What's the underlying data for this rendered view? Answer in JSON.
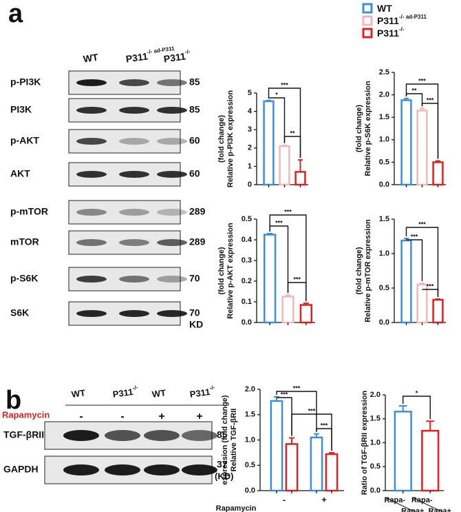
{
  "panel_a": "a",
  "panel_b": "b",
  "legend": [
    {
      "name": "WT",
      "color": "#3b8fdc"
    },
    {
      "name": "P311",
      "sup": "-/- ad-P311",
      "color": "#f2b8b8"
    },
    {
      "name": "P311",
      "sup": "-/-",
      "color": "#e02020"
    }
  ],
  "blot_a": {
    "lanes": [
      {
        "name": "WT"
      },
      {
        "name": "P311",
        "sup": "-/- ad-P311"
      },
      {
        "name": "P311",
        "sup": "-/-"
      }
    ],
    "rows": [
      {
        "label": "p-PI3K",
        "kda": "85"
      },
      {
        "label": "PI3K",
        "kda": "85"
      },
      {
        "label": "p-AKT",
        "kda": "60"
      },
      {
        "label": "AKT",
        "kda": "60"
      },
      {
        "label": "p-mTOR",
        "kda": "289"
      },
      {
        "label": "mTOR",
        "kda": "289"
      },
      {
        "label": "p-S6K",
        "kda": "70"
      },
      {
        "label": "S6K",
        "kda": "70"
      }
    ],
    "unit": "KD"
  },
  "blot_b": {
    "lanes": [
      {
        "name": "WT"
      },
      {
        "name": "P311",
        "sup": "-/-"
      },
      {
        "name": "WT"
      },
      {
        "name": "P311",
        "sup": "-/-"
      }
    ],
    "treatment": "Rapamycin",
    "treatment_marks": [
      "-",
      "-",
      "+",
      "+"
    ],
    "rows": [
      {
        "label": "TGF-βRII",
        "kda": "85"
      },
      {
        "label": "GAPDH",
        "kda": "37"
      }
    ],
    "unit": "(KD)"
  },
  "chart_data": [
    {
      "type": "bar",
      "ylabel": [
        "Relative p-PI3K expression",
        "(fold change)"
      ],
      "categories": [
        null,
        null,
        null
      ],
      "values": [
        4.55,
        2.1,
        0.7
      ],
      "errors": [
        0.05,
        0.05,
        0.65
      ],
      "colors": [
        "#3b8fdc",
        "#f2b8b8",
        "#e02020"
      ],
      "ylim": [
        0,
        5
      ],
      "yticks": [
        0,
        1,
        2,
        3,
        4,
        5
      ],
      "annotations": [
        "*",
        "***",
        "**"
      ]
    },
    {
      "type": "bar",
      "ylabel": [
        "Relative p-S6K expression",
        "(fold change)"
      ],
      "categories": [
        null,
        null,
        null
      ],
      "values": [
        1.88,
        1.65,
        0.5
      ],
      "errors": [
        0.04,
        0.05,
        0.03
      ],
      "colors": [
        "#3b8fdc",
        "#f2b8b8",
        "#e02020"
      ],
      "ylim": [
        0,
        2.5
      ],
      "yticks": [
        {
          "value": 0,
          "label": "0.0"
        },
        0.5,
        {
          "value": 1,
          "label": "1.0"
        },
        1.5,
        {
          "value": 2,
          "label": "2.0"
        },
        2.5
      ],
      "annotations": [
        "**",
        "***",
        "***"
      ]
    },
    {
      "type": "bar",
      "ylabel": [
        "Relative p-AKT expression",
        "(fold change)"
      ],
      "categories": [
        null,
        null,
        null
      ],
      "values": [
        0.425,
        0.125,
        0.085
      ],
      "errors": [
        0.005,
        0.008,
        0.008
      ],
      "colors": [
        "#3b8fdc",
        "#f2b8b8",
        "#e02020"
      ],
      "ylim": [
        0,
        0.5
      ],
      "yticks": [
        {
          "value": 0,
          "label": "0.0"
        },
        0.1,
        0.2,
        0.3,
        0.4,
        0.5
      ],
      "annotations": [
        "***",
        "***",
        "***"
      ]
    },
    {
      "type": "bar",
      "ylabel": [
        "Relative p-mTOR expression",
        "(fold change)"
      ],
      "categories": [
        null,
        null,
        null
      ],
      "values": [
        1.19,
        0.55,
        0.33
      ],
      "errors": [
        0.03,
        0.02,
        0.01
      ],
      "colors": [
        "#3b8fdc",
        "#f2b8b8",
        "#e02020"
      ],
      "ylim": [
        0,
        1.5
      ],
      "yticks": [
        {
          "value": 0,
          "label": "0.0"
        },
        0.5,
        {
          "value": 1,
          "label": "1.0"
        },
        1.5
      ],
      "annotations": [
        "***",
        "***",
        "***"
      ]
    },
    {
      "type": "bar",
      "ylabel": [
        "Relative TGF-βRII",
        "expression (fold change)"
      ],
      "xlabel": "Rapamycin",
      "categories": [
        "-",
        "+"
      ],
      "series": [
        {
          "color": "#3b8fdc",
          "values": [
            1.77,
            1.05
          ],
          "errors": [
            0.08,
            0.07
          ]
        },
        {
          "color": "#e02020",
          "values": [
            0.92,
            0.72
          ],
          "errors": [
            0.12,
            0.03
          ]
        }
      ],
      "ylim": [
        0,
        2
      ],
      "yticks": [
        {
          "value": 0,
          "label": "0.0"
        },
        0.5,
        {
          "value": 1,
          "label": "1.0"
        },
        1.5,
        {
          "value": 2,
          "label": "2.0"
        }
      ],
      "annotations": [
        "***",
        "***",
        "***",
        "***"
      ]
    },
    {
      "type": "bar",
      "ylabel": [
        "Ratio of TGF-βRII expression"
      ],
      "categories": [
        [
          "Rapa-",
          "Rapa+"
        ],
        [
          "Rapa-",
          "Rapa+"
        ]
      ],
      "values": [
        1.65,
        1.25
      ],
      "errors": [
        0.12,
        0.2
      ],
      "colors": [
        "#3b8fdc",
        "#e02020"
      ],
      "ylim": [
        0,
        2
      ],
      "yticks": [
        {
          "value": 0,
          "label": "0.0"
        },
        0.5,
        {
          "value": 1,
          "label": "1.0"
        },
        1.5,
        {
          "value": 2,
          "label": "2.0"
        }
      ],
      "annotations": [
        "*"
      ]
    }
  ]
}
